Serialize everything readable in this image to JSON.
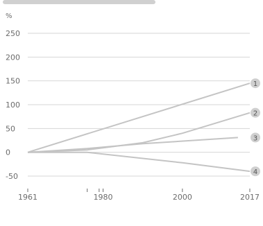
{
  "colors": {
    "grid": "#d6d6d6",
    "axis_text": "#6b6b6b",
    "series_line": "#c4c4c4",
    "marker_fill": "#cfcfcf",
    "marker_text": "#555555",
    "top_bar": "#d0d0d0"
  },
  "chart_data": {
    "type": "line",
    "ylabel": "%",
    "ylim": [
      -60,
      260
    ],
    "xlim": [
      1961,
      2017
    ],
    "grid": true,
    "yticks": [
      250,
      200,
      150,
      100,
      50,
      0,
      -50
    ],
    "xticks": [
      {
        "value": 1961,
        "label": "1961"
      },
      {
        "value": 1980,
        "label": "1980"
      },
      {
        "value": 2000,
        "label": "2000"
      },
      {
        "value": 2017,
        "label": "2017"
      }
    ],
    "minor_xticks": [
      1976,
      1979
    ],
    "series": [
      {
        "marker": "1",
        "points": [
          [
            1961,
            0
          ],
          [
            2017,
            145
          ]
        ]
      },
      {
        "marker": "2",
        "points": [
          [
            1961,
            0
          ],
          [
            1976,
            5
          ],
          [
            1990,
            20
          ],
          [
            2000,
            40
          ],
          [
            2017,
            83
          ]
        ]
      },
      {
        "marker": "3",
        "points": [
          [
            1961,
            0
          ],
          [
            1976,
            8
          ],
          [
            1990,
            18
          ],
          [
            2014,
            31
          ]
        ]
      },
      {
        "marker": "4",
        "points": [
          [
            1961,
            0
          ],
          [
            1976,
            0
          ],
          [
            2000,
            -22
          ],
          [
            2017,
            -40
          ]
        ]
      }
    ]
  }
}
